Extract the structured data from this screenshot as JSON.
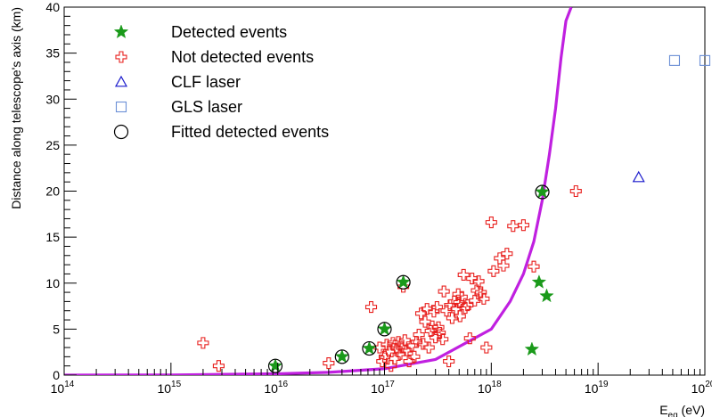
{
  "chart_data": {
    "type": "scatter",
    "x_scale": "log",
    "xlim": [
      100000000000000.0,
      1e+20
    ],
    "ylim": [
      0,
      40
    ],
    "ylabel": "Distance along telescope's axis (km)",
    "xlabel": {
      "main": "E",
      "sub": "eq",
      "unit": " (eV)"
    },
    "y_ticks": [
      0,
      5,
      10,
      15,
      20,
      25,
      30,
      35,
      40
    ],
    "x_ticks": [
      {
        "value": 100000000000000.0,
        "base": "10",
        "exp": "14"
      },
      {
        "value": 1000000000000000.0,
        "base": "10",
        "exp": "15"
      },
      {
        "value": 1e+16,
        "base": "10",
        "exp": "16"
      },
      {
        "value": 1e+17,
        "base": "10",
        "exp": "17"
      },
      {
        "value": 1e+18,
        "base": "10",
        "exp": "18"
      },
      {
        "value": 1e+19,
        "base": "10",
        "exp": "19"
      },
      {
        "value": 1e+20,
        "base": "10",
        "exp": "20"
      }
    ],
    "legend": {
      "placement": "top-left",
      "entries": [
        {
          "name": "Detected events",
          "marker": "star",
          "color": "#1a9a1a"
        },
        {
          "name": "Not detected events",
          "marker": "open-cross",
          "color": "#e8201e"
        },
        {
          "name": "CLF laser",
          "marker": "open-triangle",
          "color": "#1a1acc"
        },
        {
          "name": "GLS laser",
          "marker": "open-square",
          "color": "#6b8fd6"
        },
        {
          "name": "Fitted detected events",
          "marker": "open-circle",
          "color": "#000000"
        }
      ]
    },
    "series": [
      {
        "name": "Detected events",
        "marker": "star",
        "color": "#1a9a1a",
        "points": [
          [
            9500000000000000.0,
            1.0
          ],
          [
            4e+16,
            2.0
          ],
          [
            7.2e+16,
            2.9
          ],
          [
            1e+17,
            5.0
          ],
          [
            1.5e+17,
            10.1
          ],
          [
            2.4e+18,
            2.8
          ],
          [
            2.8e+18,
            10.1
          ],
          [
            3e+18,
            19.9
          ],
          [
            3.3e+18,
            8.6
          ]
        ]
      },
      {
        "name": "Not detected events",
        "marker": "open-cross",
        "color": "#e8201e",
        "points": [
          [
            2000000000000000.0,
            3.5
          ],
          [
            2800000000000000.0,
            1.0
          ],
          [
            3e+16,
            1.3
          ],
          [
            7.5e+16,
            7.4
          ],
          [
            9e+16,
            3.0
          ],
          [
            9.5e+16,
            1.5
          ],
          [
            1e+17,
            2.0
          ],
          [
            1.05e+17,
            3.3
          ],
          [
            1.1e+17,
            2.6
          ],
          [
            1.15e+17,
            1.0
          ],
          [
            1.2e+17,
            3.5
          ],
          [
            1.25e+17,
            1.8
          ],
          [
            1.3e+17,
            2.9
          ],
          [
            1.35e+17,
            3.6
          ],
          [
            1.4e+17,
            2.3
          ],
          [
            1.45e+17,
            3.0
          ],
          [
            1.5e+17,
            9.6
          ],
          [
            1.55e+17,
            3.8
          ],
          [
            1.6e+17,
            2.7
          ],
          [
            1.7e+17,
            1.5
          ],
          [
            1.8e+17,
            3.2
          ],
          [
            1.9e+17,
            2.0
          ],
          [
            2e+17,
            3.6
          ],
          [
            2.1e+17,
            4.4
          ],
          [
            2.2e+17,
            6.7
          ],
          [
            2.3e+17,
            3.4
          ],
          [
            2.4e+17,
            5.8
          ],
          [
            2.5e+17,
            7.2
          ],
          [
            2.6e+17,
            3.0
          ],
          [
            2.7e+17,
            4.8
          ],
          [
            2.8e+17,
            5.3
          ],
          [
            2.9e+17,
            6.9
          ],
          [
            3e+17,
            4.1
          ],
          [
            3.1e+17,
            7.4
          ],
          [
            3.2e+17,
            5.2
          ],
          [
            3.3e+17,
            4.6
          ],
          [
            3.5e+17,
            3.9
          ],
          [
            3.6e+17,
            9.1
          ],
          [
            3.8e+17,
            7.0
          ],
          [
            4e+17,
            1.5
          ],
          [
            4.1e+17,
            7.6
          ],
          [
            4.3e+17,
            6.2
          ],
          [
            4.5e+17,
            8.0
          ],
          [
            4.7e+17,
            7.2
          ],
          [
            4.9e+17,
            8.8
          ],
          [
            5e+17,
            7.9
          ],
          [
            5.1e+17,
            6.4
          ],
          [
            5.3e+17,
            8.5
          ],
          [
            5.5e+17,
            10.9
          ],
          [
            5.7e+17,
            7.3
          ],
          [
            6e+17,
            7.6
          ],
          [
            6.3e+17,
            4.0
          ],
          [
            6.6e+17,
            10.5
          ],
          [
            7e+17,
            8.1
          ],
          [
            7.3e+17,
            9.2
          ],
          [
            7.6e+17,
            10.2
          ],
          [
            8e+17,
            9.0
          ],
          [
            8.5e+17,
            8.3
          ],
          [
            9e+17,
            3.0
          ],
          [
            1e+18,
            16.6
          ],
          [
            1.05e+18,
            11.3
          ],
          [
            1.2e+18,
            12.7
          ],
          [
            1.3e+18,
            11.9
          ],
          [
            1.4e+18,
            13.2
          ],
          [
            1.6e+18,
            16.2
          ],
          [
            2e+18,
            16.3
          ],
          [
            2.5e+18,
            11.8
          ],
          [
            6.2e+18,
            20.0
          ]
        ]
      },
      {
        "name": "CLF laser",
        "marker": "open-triangle",
        "color": "#1a1acc",
        "points": [
          [
            2.4e+19,
            21.5
          ]
        ]
      },
      {
        "name": "GLS laser",
        "marker": "open-square",
        "color": "#6b8fd6",
        "points": [
          [
            5.2e+19,
            34.2
          ],
          [
            1e+20,
            34.2
          ]
        ]
      },
      {
        "name": "Fitted detected events",
        "marker": "open-circle",
        "color": "#000000",
        "points": [
          [
            9500000000000000.0,
            1.0
          ],
          [
            4e+16,
            2.0
          ],
          [
            7.2e+16,
            2.9
          ],
          [
            1e+17,
            5.0
          ],
          [
            1.5e+17,
            10.1
          ],
          [
            3e+18,
            19.9
          ]
        ]
      }
    ],
    "fit_curve": {
      "color": "#c020e0",
      "points": [
        [
          100000000000000.0,
          0.0
        ],
        [
          1000000000000000.0,
          0.02
        ],
        [
          1e+16,
          0.15
        ],
        [
          3e+16,
          0.3
        ],
        [
          1e+17,
          0.7
        ],
        [
          3e+17,
          1.7
        ],
        [
          1e+18,
          5.0
        ],
        [
          1.5e+18,
          8.0
        ],
        [
          2e+18,
          11.0
        ],
        [
          2.5e+18,
          14.5
        ],
        [
          3e+18,
          19.0
        ],
        [
          3.5e+18,
          24.0
        ],
        [
          4e+18,
          29.0
        ],
        [
          4.5e+18,
          34.5
        ],
        [
          5e+18,
          38.5
        ],
        [
          5.6e+18,
          40.0
        ]
      ]
    }
  }
}
